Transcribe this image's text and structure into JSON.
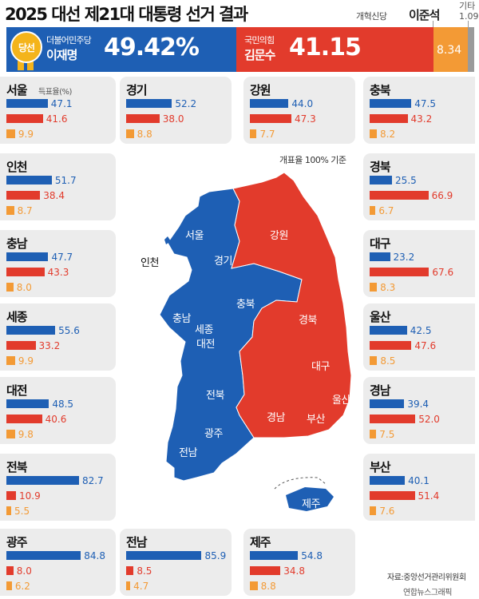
{
  "header": {
    "title": "2025 대선 제21대 대통령 선거 결과",
    "winner_badge": "당선",
    "others_label": "기타",
    "others_value": "1.09",
    "candidates": [
      {
        "party": "더불어민주당",
        "name": "이재명",
        "share": "49.42%",
        "color": "#1e5fb4"
      },
      {
        "party": "국민의힘",
        "name": "김문수",
        "share": "41.15",
        "color": "#e23b2c"
      },
      {
        "party": "개혁신당",
        "name": "이준석",
        "share": "8.34",
        "color": "#f39a35"
      }
    ]
  },
  "map": {
    "note": "개표율 100% 기준",
    "legend_unit": "득표율(%)",
    "labels": [
      "서울",
      "경기",
      "인천",
      "강원",
      "충북",
      "충남",
      "세종",
      "대전",
      "경북",
      "대구",
      "전북",
      "광주",
      "전남",
      "경남",
      "부산",
      "울산",
      "제주"
    ]
  },
  "chart_data": {
    "type": "bar",
    "title": "2025 대선 제21대 대통령 선거 결과",
    "unit": "득표율(%)",
    "national": {
      "이재명": 49.42,
      "김문수": 41.15,
      "이준석": 8.34,
      "기타": 1.09
    },
    "series": [
      {
        "name": "이재명"
      },
      {
        "name": "김문수"
      },
      {
        "name": "이준석"
      }
    ],
    "regions": [
      {
        "name": "서울",
        "values": [
          47.1,
          41.6,
          9.9
        ]
      },
      {
        "name": "경기",
        "values": [
          52.2,
          38.0,
          8.8
        ]
      },
      {
        "name": "강원",
        "values": [
          44.0,
          47.3,
          7.7
        ]
      },
      {
        "name": "충북",
        "values": [
          47.5,
          43.2,
          8.2
        ]
      },
      {
        "name": "인천",
        "values": [
          51.7,
          38.4,
          8.7
        ]
      },
      {
        "name": "경북",
        "values": [
          25.5,
          66.9,
          6.7
        ]
      },
      {
        "name": "충남",
        "values": [
          47.7,
          43.3,
          8.0
        ]
      },
      {
        "name": "대구",
        "values": [
          23.2,
          67.6,
          8.3
        ]
      },
      {
        "name": "세종",
        "values": [
          55.6,
          33.2,
          9.9
        ]
      },
      {
        "name": "울산",
        "values": [
          42.5,
          47.6,
          8.5
        ]
      },
      {
        "name": "대전",
        "values": [
          48.5,
          40.6,
          9.8
        ]
      },
      {
        "name": "경남",
        "values": [
          39.4,
          52.0,
          7.5
        ]
      },
      {
        "name": "전북",
        "values": [
          82.7,
          10.9,
          5.5
        ]
      },
      {
        "name": "부산",
        "values": [
          40.1,
          51.4,
          7.6
        ]
      },
      {
        "name": "광주",
        "values": [
          84.8,
          8.0,
          6.2
        ]
      },
      {
        "name": "전남",
        "values": [
          85.9,
          8.5,
          4.7
        ]
      },
      {
        "name": "제주",
        "values": [
          54.8,
          34.8,
          8.8
        ]
      }
    ]
  },
  "source": {
    "line1": "자료:중앙선거관리위원회",
    "line2": "연합뉴스그래픽"
  }
}
